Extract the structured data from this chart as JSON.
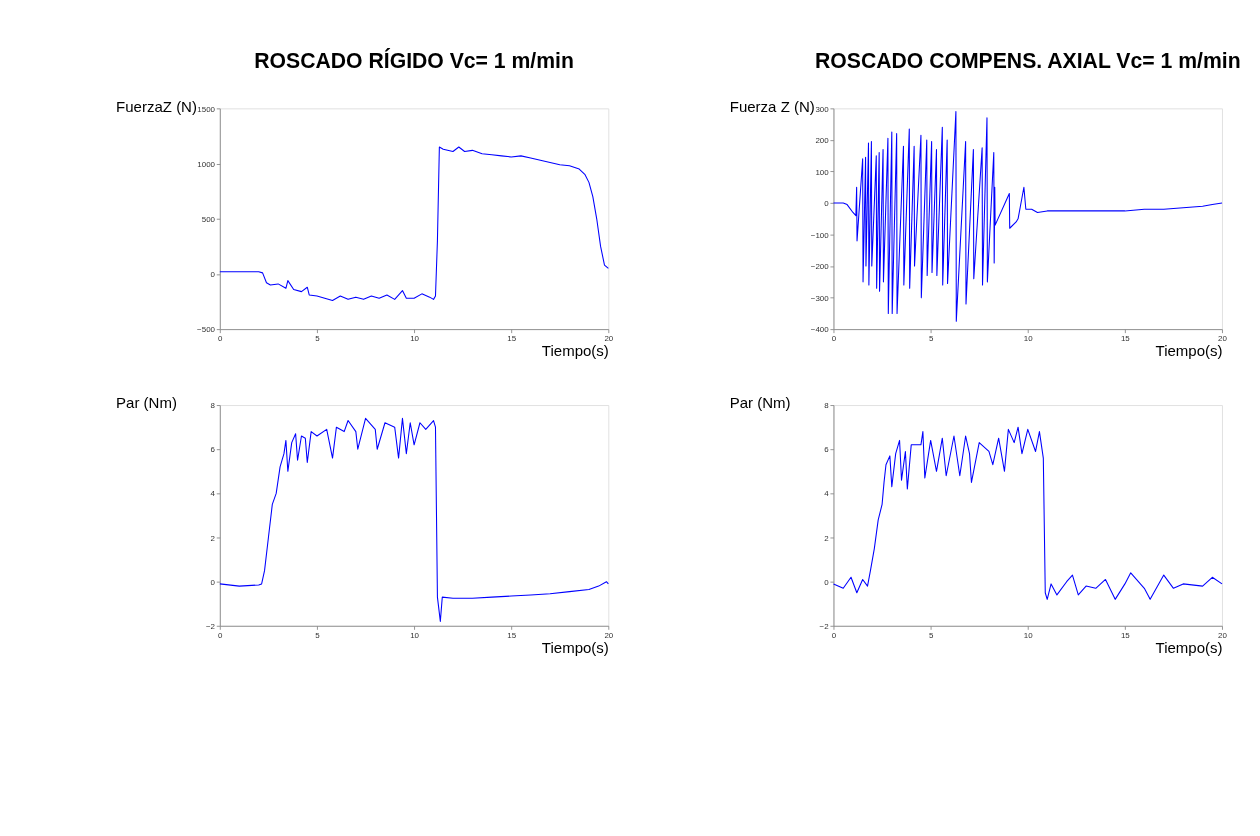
{
  "chart_data": [
    {
      "type": "line",
      "title": "ROSCADO RÍGIDO Vc= 1 m/min",
      "ylabel": "FuerzaZ (N)",
      "xlabel": "Tiempo(s)",
      "color": "#0000ff",
      "grid": false,
      "marker": "none",
      "line_style": "solid",
      "xlim": [
        0,
        20
      ],
      "xticks": [
        0,
        5,
        10,
        15,
        20
      ],
      "ylim": [
        -500,
        1500
      ],
      "yticks": [
        -500,
        0,
        500,
        1000,
        1500
      ],
      "x": [
        0,
        0.5,
        1,
        1.5,
        2.0,
        2.2,
        2.4,
        2.6,
        3,
        3.4,
        3.5,
        3.8,
        4.2,
        4.5,
        4.6,
        5,
        5.4,
        5.8,
        6.2,
        6.6,
        7,
        7.4,
        7.8,
        8.2,
        8.6,
        9,
        9.4,
        9.6,
        10,
        10.4,
        10.8,
        11.0,
        11.1,
        11.2,
        11.3,
        11.5,
        12,
        12.3,
        12.6,
        13,
        13.5,
        14,
        14.5,
        15,
        15.5,
        16,
        16.5,
        17,
        17.5,
        18,
        18.5,
        18.8,
        19,
        19.2,
        19.4,
        19.6,
        19.8,
        20
      ],
      "values": [
        20,
        20,
        20,
        20,
        20,
        10,
        -80,
        -100,
        -90,
        -130,
        -60,
        -140,
        -160,
        -120,
        -190,
        -200,
        -220,
        -240,
        -200,
        -230,
        -210,
        -230,
        -200,
        -220,
        -190,
        -230,
        -150,
        -220,
        -220,
        -180,
        -210,
        -230,
        -200,
        300,
        1150,
        1130,
        1110,
        1150,
        1110,
        1120,
        1090,
        1080,
        1070,
        1060,
        1070,
        1050,
        1030,
        1010,
        990,
        980,
        950,
        900,
        830,
        700,
        500,
        250,
        80,
        50
      ]
    },
    {
      "type": "line",
      "title": "ROSCADO COMPENS. AXIAL Vc= 1 m/min",
      "ylabel": "Fuerza Z (N)",
      "xlabel": "Tiempo(s)",
      "color": "#0000ff",
      "grid": false,
      "marker": "none",
      "line_style": "solid",
      "xlim": [
        0,
        20
      ],
      "xticks": [
        0,
        5,
        10,
        15,
        20
      ],
      "ylim": [
        -400,
        300
      ],
      "yticks": [
        -400,
        -300,
        -200,
        -100,
        0,
        100,
        200,
        300
      ],
      "x": [
        0,
        0.5,
        0.7,
        1.0,
        1.15,
        1.19,
        1.21,
        1.3,
        1.5,
        1.52,
        1.65,
        1.67,
        1.8,
        1.82,
        1.95,
        1.97,
        2.2,
        2.22,
        2.35,
        2.37,
        2.55,
        2.57,
        2.8,
        2.82,
        3.0,
        3.02,
        3.25,
        3.27,
        3.6,
        3.62,
        3.9,
        3.92,
        4.15,
        4.17,
        4.5,
        4.52,
        4.8,
        4.82,
        5.05,
        5.07,
        5.3,
        5.32,
        5.6,
        5.62,
        5.85,
        5.87,
        6.3,
        6.32,
        6.8,
        6.82,
        7.2,
        7.22,
        7.65,
        7.67,
        7.9,
        7.92,
        8.25,
        8.27,
        8.3,
        8.32,
        9.05,
        9.07,
        9.4,
        9.5,
        9.8,
        9.9,
        10.2,
        10.5,
        11,
        12,
        13,
        14,
        15,
        16,
        17,
        18,
        19,
        19.5,
        20
      ],
      "values": [
        0,
        0,
        -5,
        -30,
        -40,
        50,
        -120,
        -40,
        140,
        -250,
        145,
        -200,
        190,
        -260,
        195,
        -200,
        150,
        -270,
        160,
        -280,
        170,
        -250,
        205,
        -350,
        225,
        -350,
        220,
        -350,
        180,
        -260,
        235,
        -270,
        180,
        -200,
        215,
        -300,
        200,
        -230,
        195,
        -220,
        170,
        -230,
        240,
        -260,
        200,
        -255,
        290,
        -375,
        195,
        -320,
        170,
        -240,
        175,
        -260,
        270,
        -250,
        160,
        -190,
        50,
        -70,
        30,
        -80,
        -60,
        -50,
        50,
        -20,
        -20,
        -30,
        -25,
        -25,
        -25,
        -25,
        -25,
        -20,
        -20,
        -15,
        -10,
        -5,
        0
      ]
    },
    {
      "type": "line",
      "ylabel": "Par (Nm)",
      "xlabel": "Tiempo(s)",
      "color": "#0000ff",
      "grid": false,
      "marker": "none",
      "line_style": "solid",
      "xlim": [
        0,
        20
      ],
      "xticks": [
        0,
        5,
        10,
        15,
        20
      ],
      "ylim": [
        -2,
        8
      ],
      "yticks": [
        -2,
        0,
        2,
        4,
        6,
        8
      ],
      "x": [
        0,
        1,
        2,
        2.15,
        2.3,
        2.5,
        2.7,
        2.9,
        3.1,
        3.3,
        3.4,
        3.5,
        3.7,
        3.9,
        4,
        4.2,
        4.4,
        4.5,
        4.7,
        5,
        5.5,
        5.8,
        6,
        6.4,
        6.6,
        7,
        7.1,
        7.5,
        8,
        8.1,
        8.5,
        9,
        9.2,
        9.4,
        9.6,
        9.8,
        10,
        10.3,
        10.6,
        11,
        11.1,
        11.2,
        11.35,
        11.45,
        12,
        13,
        14,
        15,
        16,
        17,
        18,
        19,
        19.5,
        19.9,
        20
      ],
      "values": [
        -0.1,
        -0.2,
        -0.15,
        -0.1,
        0.5,
        2,
        3.5,
        4,
        5.2,
        5.8,
        6.4,
        5,
        6.3,
        6.7,
        5.5,
        6.6,
        6.5,
        5.4,
        6.8,
        6.6,
        6.9,
        5.6,
        7,
        6.8,
        7.3,
        6.8,
        6.0,
        7.4,
        6.9,
        6.0,
        7.2,
        7.0,
        5.6,
        7.4,
        5.8,
        7.2,
        6.2,
        7.2,
        6.9,
        7.3,
        7.0,
        -0.7,
        -1.8,
        -0.7,
        -0.75,
        -0.75,
        -0.7,
        -0.65,
        -0.6,
        -0.55,
        -0.45,
        -0.35,
        -0.2,
        0.0,
        -0.1
      ]
    },
    {
      "type": "line",
      "ylabel": "Par (Nm)",
      "xlabel": "Tiempo(s)",
      "color": "#0000ff",
      "grid": false,
      "marker": "none",
      "line_style": "solid",
      "xlim": [
        0,
        20
      ],
      "xticks": [
        0,
        5,
        10,
        15,
        20
      ],
      "ylim": [
        -2,
        8
      ],
      "yticks": [
        -2,
        0,
        2,
        4,
        6,
        8
      ],
      "x": [
        0,
        0.5,
        0.9,
        1.2,
        1.5,
        1.75,
        1.9,
        2.1,
        2.3,
        2.5,
        2.6,
        2.7,
        2.9,
        3,
        3.2,
        3.4,
        3.5,
        3.7,
        3.8,
        4,
        4.5,
        4.6,
        4.7,
        5,
        5.3,
        5.6,
        5.8,
        6.2,
        6.5,
        6.8,
        7,
        7.1,
        7.5,
        8,
        8.2,
        8.5,
        8.8,
        9,
        9.3,
        9.5,
        9.7,
        10,
        10.4,
        10.6,
        10.8,
        10.9,
        11,
        11.2,
        11.5,
        12,
        12.3,
        12.6,
        13,
        13.5,
        14,
        14.5,
        15,
        15.3,
        16,
        16.3,
        17,
        17.5,
        18,
        19,
        19.5,
        20
      ],
      "values": [
        -0.1,
        -0.3,
        0.2,
        -0.5,
        0.1,
        -0.2,
        0.5,
        1.5,
        2.8,
        3.5,
        4.5,
        5.3,
        5.7,
        4.3,
        5.8,
        6.4,
        4.6,
        5.9,
        4.2,
        6.2,
        6.2,
        6.8,
        4.7,
        6.4,
        5.0,
        6.5,
        4.8,
        6.6,
        4.8,
        6.6,
        5.8,
        4.5,
        6.3,
        5.9,
        5.3,
        6.5,
        5.0,
        6.9,
        6.3,
        7.0,
        5.8,
        6.9,
        5.9,
        6.8,
        5.6,
        -0.5,
        -0.8,
        -0.1,
        -0.6,
        0,
        0.3,
        -0.6,
        -0.2,
        -0.3,
        0.1,
        -0.8,
        -0.1,
        0.4,
        -0.3,
        -0.8,
        0.3,
        -0.3,
        -0.1,
        -0.2,
        0.2,
        -0.1
      ]
    }
  ]
}
